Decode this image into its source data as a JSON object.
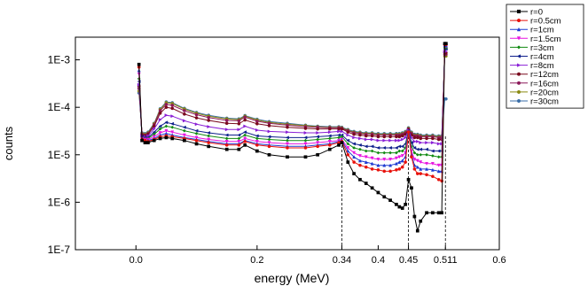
{
  "chart_data": {
    "type": "line",
    "title": "",
    "xlabel": "energy (MeV)",
    "ylabel": "counts",
    "xlim": [
      -0.1,
      0.6
    ],
    "ylim": [
      1e-07,
      0.003
    ],
    "yscale": "log",
    "x_ticks": [
      {
        "value": 0.0,
        "label": "0.0"
      },
      {
        "value": 0.2,
        "label": "0.2"
      },
      {
        "value": 0.34,
        "label": "0.34"
      },
      {
        "value": 0.4,
        "label": "0.4"
      },
      {
        "value": 0.45,
        "label": "0.45"
      },
      {
        "value": 0.511,
        "label": "0.511"
      },
      {
        "value": 0.6,
        "label": "0.6"
      }
    ],
    "y_ticks": [
      {
        "value": 1e-07,
        "label": "1E-7"
      },
      {
        "value": 1e-06,
        "label": "1E-6"
      },
      {
        "value": 1e-05,
        "label": "1E-5"
      },
      {
        "value": 0.0001,
        "label": "1E-4"
      },
      {
        "value": 0.001,
        "label": "1E-3"
      }
    ],
    "reference_lines": [
      0.34,
      0.45,
      0.511
    ],
    "grid": false,
    "legend_position": "top-right outside",
    "x": [
      0.005,
      0.01,
      0.015,
      0.02,
      0.03,
      0.04,
      0.05,
      0.06,
      0.08,
      0.1,
      0.12,
      0.15,
      0.17,
      0.18,
      0.2,
      0.22,
      0.25,
      0.28,
      0.3,
      0.32,
      0.335,
      0.34,
      0.35,
      0.36,
      0.37,
      0.38,
      0.39,
      0.4,
      0.41,
      0.42,
      0.43,
      0.435,
      0.44,
      0.445,
      0.45,
      0.455,
      0.46,
      0.465,
      0.47,
      0.48,
      0.49,
      0.5,
      0.505,
      0.51,
      0.512
    ],
    "series": [
      {
        "name": "r=0",
        "color": "#000000",
        "marker": "square",
        "values": [
          0.0008,
          2e-05,
          1.8e-05,
          1.8e-05,
          2e-05,
          2.2e-05,
          2.3e-05,
          2.2e-05,
          2e-05,
          1.7e-05,
          1.5e-05,
          1.3e-05,
          1.3e-05,
          1.6e-05,
          1.2e-05,
          1e-05,
          9e-06,
          9e-06,
          1e-05,
          1.3e-05,
          1.6e-05,
          1.8e-05,
          7e-06,
          4e-06,
          3e-06,
          2.5e-06,
          2e-06,
          1.6e-06,
          1.3e-06,
          1.1e-06,
          9e-07,
          8e-07,
          7.5e-07,
          9e-07,
          3e-06,
          2e-06,
          5e-07,
          2.5e-07,
          4e-07,
          6e-07,
          6e-07,
          6e-07,
          6e-07,
          0.0022,
          0.0022
        ]
      },
      {
        "name": "r=0.5cm",
        "color": "#e8120c",
        "marker": "circle",
        "values": [
          0.0007,
          2.1e-05,
          2e-05,
          1.9e-05,
          2.1e-05,
          2.4e-05,
          2.5e-05,
          2.4e-05,
          2.2e-05,
          2e-05,
          1.8e-05,
          1.6e-05,
          1.6e-05,
          1.9e-05,
          1.6e-05,
          1.5e-05,
          1.4e-05,
          1.4e-05,
          1.5e-05,
          1.6e-05,
          1.8e-05,
          1.9e-05,
          1e-05,
          7e-06,
          6e-06,
          5.5e-06,
          5e-06,
          4.8e-06,
          4.5e-06,
          4.5e-06,
          4.8e-06,
          5e-06,
          5.5e-06,
          7e-06,
          3e-05,
          9e-06,
          5e-06,
          4e-06,
          4e-06,
          3.8e-06,
          3.5e-06,
          3e-06,
          2.8e-06,
          0.0021,
          0.0021
        ]
      },
      {
        "name": "r=1cm",
        "color": "#1f3bd1",
        "marker": "triangle",
        "values": [
          0.0006,
          2e-05,
          2e-05,
          2e-05,
          2.2e-05,
          2.6e-05,
          2.8e-05,
          2.6e-05,
          2.3e-05,
          2.1e-05,
          1.9e-05,
          1.7e-05,
          1.7e-05,
          2e-05,
          1.7e-05,
          1.6e-05,
          1.5e-05,
          1.5e-05,
          1.6e-05,
          1.7e-05,
          1.9e-05,
          2e-05,
          1.2e-05,
          9e-06,
          7.5e-06,
          7e-06,
          6.5e-06,
          6e-06,
          6e-06,
          6e-06,
          6.5e-06,
          7e-06,
          7.5e-06,
          9e-06,
          3e-05,
          1e-05,
          6e-06,
          5.5e-06,
          5e-06,
          5e-06,
          4.8e-06,
          4.5e-06,
          4.5e-06,
          0.002,
          0.002
        ]
      },
      {
        "name": "r=1.5cm",
        "color": "#e815e0",
        "marker": "triangle-down",
        "values": [
          0.0005,
          2.2e-05,
          2.1e-05,
          2.1e-05,
          2.4e-05,
          2.9e-05,
          3.2e-05,
          3e-05,
          2.6e-05,
          2.3e-05,
          2.1e-05,
          1.9e-05,
          1.9e-05,
          2.2e-05,
          1.9e-05,
          1.8e-05,
          1.7e-05,
          1.7e-05,
          1.8e-05,
          1.9e-05,
          2e-05,
          2.1e-05,
          1.4e-05,
          1.1e-05,
          9.5e-06,
          9e-06,
          8.5e-06,
          8e-06,
          8e-06,
          8e-06,
          8.5e-06,
          9e-06,
          9.5e-06,
          1.1e-05,
          3e-05,
          1.2e-05,
          8e-06,
          7.5e-06,
          7e-06,
          6.5e-06,
          6.5e-06,
          6e-06,
          6e-06,
          0.0019,
          0.0019
        ]
      },
      {
        "name": "r=3cm",
        "color": "#108a10",
        "marker": "diamond",
        "values": [
          0.0004,
          2.3e-05,
          2.2e-05,
          2.2e-05,
          2.7e-05,
          3.5e-05,
          4e-05,
          3.8e-05,
          3.2e-05,
          2.8e-05,
          2.5e-05,
          2.2e-05,
          2.2e-05,
          2.6e-05,
          2.2e-05,
          2.1e-05,
          2e-05,
          2e-05,
          2.1e-05,
          2.2e-05,
          2.3e-05,
          2.4e-05,
          1.7e-05,
          1.4e-05,
          1.3e-05,
          1.2e-05,
          1.2e-05,
          1.1e-05,
          1.1e-05,
          1.1e-05,
          1.1e-05,
          1.2e-05,
          1.2e-05,
          1.4e-05,
          3.1e-05,
          1.5e-05,
          1.1e-05,
          1e-05,
          1e-05,
          1e-05,
          9.5e-06,
          9e-06,
          9e-06,
          0.0018,
          0.0018
        ]
      },
      {
        "name": "r=4cm",
        "color": "#0e1f8c",
        "marker": "triangle-left",
        "values": [
          0.00035,
          2.4e-05,
          2.3e-05,
          2.3e-05,
          3e-05,
          4e-05,
          4.8e-05,
          4.5e-05,
          3.8e-05,
          3.2e-05,
          2.9e-05,
          2.6e-05,
          2.6e-05,
          3e-05,
          2.5e-05,
          2.4e-05,
          2.3e-05,
          2.3e-05,
          2.4e-05,
          2.5e-05,
          2.6e-05,
          2.6e-05,
          2e-05,
          1.7e-05,
          1.6e-05,
          1.5e-05,
          1.5e-05,
          1.4e-05,
          1.4e-05,
          1.4e-05,
          1.4e-05,
          1.5e-05,
          1.5e-05,
          1.7e-05,
          3.2e-05,
          1.8e-05,
          1.4e-05,
          1.3e-05,
          1.3e-05,
          1.3e-05,
          1.2e-05,
          1.2e-05,
          1.2e-05,
          0.0017,
          0.0017
        ]
      },
      {
        "name": "r=8cm",
        "color": "#8a1fd6",
        "marker": "triangle-right",
        "values": [
          0.0003,
          2.5e-05,
          2.4e-05,
          2.5e-05,
          3.5e-05,
          5.5e-05,
          6.8e-05,
          6.5e-05,
          5.2e-05,
          4.4e-05,
          3.9e-05,
          3.4e-05,
          3.4e-05,
          4e-05,
          3.3e-05,
          3.1e-05,
          3e-05,
          2.9e-05,
          2.9e-05,
          3e-05,
          3.1e-05,
          3.1e-05,
          2.6e-05,
          2.3e-05,
          2.2e-05,
          2.1e-05,
          2.1e-05,
          2e-05,
          2e-05,
          2e-05,
          2e-05,
          2e-05,
          2.1e-05,
          2.3e-05,
          3.3e-05,
          2.3e-05,
          1.9e-05,
          1.9e-05,
          1.8e-05,
          1.8e-05,
          1.8e-05,
          1.7e-05,
          1.7e-05,
          0.0015,
          0.0015
        ]
      },
      {
        "name": "r=12cm",
        "color": "#7a0a1e",
        "marker": "hexagon",
        "values": [
          0.00028,
          2.6e-05,
          2.5e-05,
          2.7e-05,
          4e-05,
          7.5e-05,
          0.0001,
          9.5e-05,
          7.2e-05,
          6e-05,
          5.3e-05,
          4.6e-05,
          4.5e-05,
          5.4e-05,
          4.5e-05,
          4.1e-05,
          3.8e-05,
          3.6e-05,
          3.5e-05,
          3.5e-05,
          3.5e-05,
          3.5e-05,
          3e-05,
          2.7e-05,
          2.6e-05,
          2.5e-05,
          2.5e-05,
          2.4e-05,
          2.4e-05,
          2.4e-05,
          2.4e-05,
          2.4e-05,
          2.5e-05,
          2.7e-05,
          3.4e-05,
          2.6e-05,
          2.3e-05,
          2.3e-05,
          2.2e-05,
          2.2e-05,
          2.2e-05,
          2.1e-05,
          2.1e-05,
          0.0014,
          0.0014
        ]
      },
      {
        "name": "r=16cm",
        "color": "#8c1a5a",
        "marker": "star",
        "values": [
          0.00025,
          2.7e-05,
          2.6e-05,
          2.8e-05,
          4.3e-05,
          8.5e-05,
          0.000115,
          0.00011,
          8.5e-05,
          7e-05,
          6.1e-05,
          5.3e-05,
          5.2e-05,
          6.2e-05,
          5.1e-05,
          4.6e-05,
          4.2e-05,
          3.9e-05,
          3.8e-05,
          3.7e-05,
          3.7e-05,
          3.6e-05,
          3.2e-05,
          2.9e-05,
          2.8e-05,
          2.7e-05,
          2.7e-05,
          2.6e-05,
          2.6e-05,
          2.6e-05,
          2.6e-05,
          2.6e-05,
          2.7e-05,
          2.9e-05,
          3.5e-05,
          2.8e-05,
          2.5e-05,
          2.5e-05,
          2.4e-05,
          2.4e-05,
          2.4e-05,
          2.3e-05,
          2.3e-05,
          0.0013,
          0.0013
        ]
      },
      {
        "name": "r=20cm",
        "color": "#8a8a12",
        "marker": "pentagon",
        "values": [
          0.00022,
          2.8e-05,
          2.7e-05,
          2.9e-05,
          4.5e-05,
          9e-05,
          0.000125,
          0.00012,
          9.2e-05,
          7.5e-05,
          6.5e-05,
          5.7e-05,
          5.5e-05,
          6.5e-05,
          5.4e-05,
          4.8e-05,
          4.4e-05,
          4.1e-05,
          3.9e-05,
          3.8e-05,
          3.8e-05,
          3.7e-05,
          3.3e-05,
          3e-05,
          2.9e-05,
          2.8e-05,
          2.8e-05,
          2.7e-05,
          2.7e-05,
          2.7e-05,
          2.7e-05,
          2.7e-05,
          2.8e-05,
          3e-05,
          3.6e-05,
          2.9e-05,
          2.6e-05,
          2.6e-05,
          2.5e-05,
          2.5e-05,
          2.5e-05,
          2.4e-05,
          2.4e-05,
          0.0012,
          0.0012
        ]
      },
      {
        "name": "r=30cm",
        "color": "#3a6ea8",
        "marker": "circle",
        "values": [
          0.0002,
          2.9e-05,
          2.8e-05,
          3e-05,
          4.6e-05,
          9.3e-05,
          0.00013,
          0.000125,
          9.5e-05,
          7.8e-05,
          6.8e-05,
          5.9e-05,
          5.7e-05,
          6.7e-05,
          5.6e-05,
          5e-05,
          4.6e-05,
          4.2e-05,
          4e-05,
          3.9e-05,
          3.9e-05,
          3.8e-05,
          3.4e-05,
          3.1e-05,
          3e-05,
          2.9e-05,
          2.9e-05,
          2.8e-05,
          2.8e-05,
          2.8e-05,
          2.8e-05,
          2.8e-05,
          2.9e-05,
          3.1e-05,
          3.7e-05,
          3e-05,
          2.7e-05,
          2.7e-05,
          2.6e-05,
          2.6e-05,
          2.6e-05,
          2.5e-05,
          2.5e-05,
          0.00015,
          0.00015
        ]
      }
    ]
  }
}
